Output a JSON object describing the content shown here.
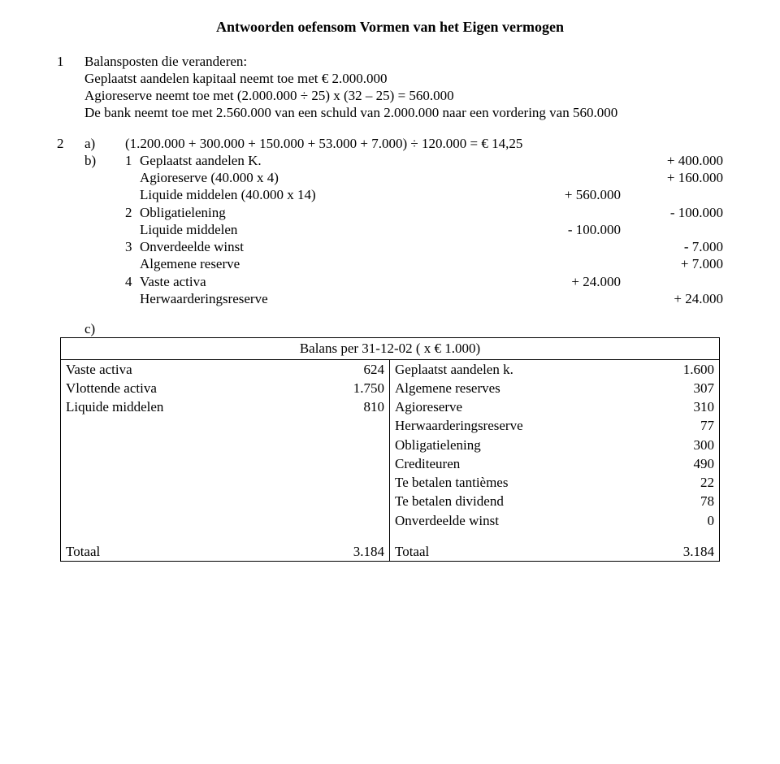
{
  "title": "Antwoorden oefensom  Vormen van het Eigen vermogen",
  "q1": {
    "num": "1",
    "line1": "Balansposten die veranderen:",
    "line2": "Geplaatst aandelen kapitaal neemt toe met € 2.000.000",
    "line3": "Agioreserve neemt toe met (2.000.000 ÷ 25) x (32 – 25) = 560.000",
    "line4": "De bank neemt toe met 2.560.000 van een schuld van 2.000.000 naar een vordering van 560.000"
  },
  "q2": {
    "num": "2",
    "a_label": "a)",
    "a_text": "(1.200.000 + 300.000 + 150.000 + 53.000 + 7.000) ÷ 120.000 = € 14,25",
    "b_label": "b)",
    "rows": [
      {
        "n": "1",
        "txt": "Geplaatst aandelen K.",
        "v1": "",
        "v2": "+ 400.000"
      },
      {
        "n": "",
        "txt": "Agioreserve (40.000 x 4)",
        "v1": "",
        "v2": "+ 160.000"
      },
      {
        "n": "",
        "txt": "Liquide middelen (40.000 x 14)",
        "v1": "+ 560.000",
        "v2": ""
      },
      {
        "n": "2",
        "txt": "Obligatielening",
        "v1": "",
        "v2": "- 100.000"
      },
      {
        "n": "",
        "txt": "Liquide middelen",
        "v1": "- 100.000",
        "v2": ""
      },
      {
        "n": "3",
        "txt": "Onverdeelde winst",
        "v1": "",
        "v2": "- 7.000"
      },
      {
        "n": "",
        "txt": "Algemene reserve",
        "v1": "",
        "v2": "+ 7.000"
      },
      {
        "n": "4",
        "txt": "Vaste activa",
        "v1": "+ 24.000",
        "v2": ""
      },
      {
        "n": "",
        "txt": "Herwaarderingsreserve",
        "v1": "",
        "v2": "+ 24.000"
      }
    ],
    "c_label": "c)"
  },
  "balance": {
    "title": "Balans per 31-12-02 ( x € 1.000)",
    "left": [
      {
        "label": "Vaste activa",
        "val": "624"
      },
      {
        "label": "Vlottende activa",
        "val": "1.750"
      },
      {
        "label": "Liquide middelen",
        "val": "810"
      }
    ],
    "right": [
      {
        "label": "Geplaatst aandelen k.",
        "val": "1.600"
      },
      {
        "label": "Algemene reserves",
        "val": "307"
      },
      {
        "label": "Agioreserve",
        "val": "310"
      },
      {
        "label": "Herwaarderingsreserve",
        "val": "77"
      },
      {
        "label": "Obligatielening",
        "val": "300"
      },
      {
        "label": "Crediteuren",
        "val": "490"
      },
      {
        "label": "Te betalen tantièmes",
        "val": "22"
      },
      {
        "label": "Te betalen dividend",
        "val": "78"
      },
      {
        "label": "Onverdeelde winst",
        "val": "0"
      }
    ],
    "total_label_left": "Totaal",
    "total_val_left": "3.184",
    "total_label_right": "Totaal",
    "total_val_right": "3.184"
  }
}
